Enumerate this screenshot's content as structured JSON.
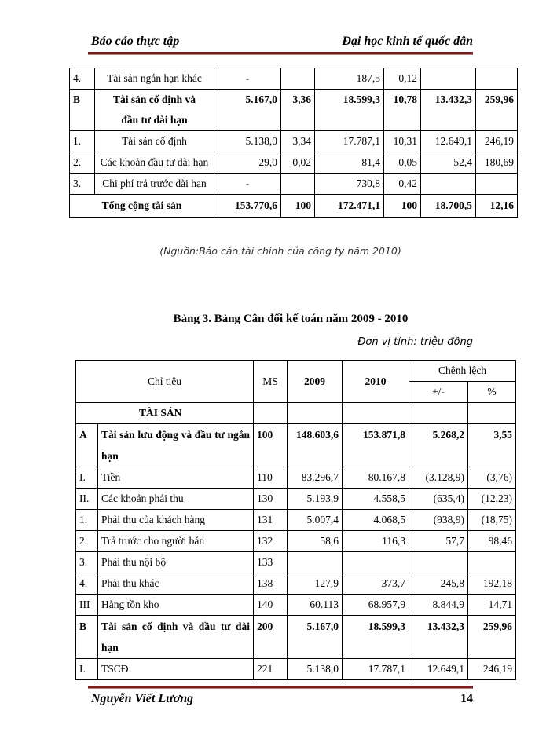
{
  "header": {
    "left": "Báo cáo thực tập",
    "right": "Đại học kinh tế quốc dân"
  },
  "table1": {
    "rows": [
      {
        "no": "4.",
        "name": "Tài sản ngắn hạn khác",
        "v2009": "-",
        "p2009": "",
        "v2010": "187,5",
        "p2010": "0,12",
        "diff": "",
        "pct": "",
        "bold": false
      },
      {
        "no": "B",
        "name": "Tài sản cố định và đầu tư dài hạn",
        "v2009": "5.167,0",
        "p2009": "3,36",
        "v2010": "18.599,3",
        "p2010": "10,78",
        "diff": "13.432,3",
        "pct": "259,96",
        "bold": true
      },
      {
        "no": "1.",
        "name": "Tài sản cố định",
        "v2009": "5.138,0",
        "p2009": "3,34",
        "v2010": "17.787,1",
        "p2010": "10,31",
        "diff": "12.649,1",
        "pct": "246,19",
        "bold": false
      },
      {
        "no": "2.",
        "name": "Các khoản đầu tư dài hạn",
        "v2009": "29,0",
        "p2009": "0,02",
        "v2010": "81,4",
        "p2010": "0,05",
        "diff": "52,4",
        "pct": "180,69",
        "bold": false
      },
      {
        "no": "3.",
        "name": "Chi phí trả trước dài hạn",
        "v2009": "-",
        "p2009": "",
        "v2010": "730,8",
        "p2010": "0,42",
        "diff": "",
        "pct": "",
        "bold": false
      }
    ],
    "total": {
      "name": "Tổng cộng tài sản",
      "v2009": "153.770,6",
      "p2009": "100",
      "v2010": "172.471,1",
      "p2010": "100",
      "diff": "18.700,5",
      "pct": "12,16"
    }
  },
  "source": "(Nguồn:Báo cáo tài chính của công ty năm 2010)",
  "table2": {
    "title": "Bảng 3. Bảng Cân đối kế toán năm 2009 - 2010",
    "unit": "Đơn vị tính: triệu đồng",
    "headers": {
      "indicator": "Chỉ tiêu",
      "ms": "MS",
      "y2009": "2009",
      "y2010": "2010",
      "diff_group": "Chênh lệch",
      "diff_abs": "+/-",
      "diff_pct": "%"
    },
    "section": "TÀI SẢN",
    "rows": [
      {
        "no": "A",
        "name": "Tài sản lưu động và đầu tư ngắn hạn",
        "ms": "100",
        "v2009": "148.603,6",
        "v2010": "153.871,8",
        "diff": "5.268,2",
        "pct": "3,55",
        "bold": true
      },
      {
        "no": "I.",
        "name": "Tiền",
        "ms": "110",
        "v2009": "83.296,7",
        "v2010": "80.167,8",
        "diff": "(3.128,9)",
        "pct": "(3,76)",
        "bold": false
      },
      {
        "no": "II.",
        "name": "Các khoản phải thu",
        "ms": "130",
        "v2009": "5.193,9",
        "v2010": "4.558,5",
        "diff": "(635,4)",
        "pct": "(12,23)",
        "bold": false
      },
      {
        "no": "1.",
        "name": "Phải thu của khách hàng",
        "ms": "131",
        "v2009": "5.007,4",
        "v2010": "4.068,5",
        "diff": "(938,9)",
        "pct": "(18,75)",
        "bold": false
      },
      {
        "no": "2.",
        "name": "Trả trước cho người bán",
        "ms": "132",
        "v2009": "58,6",
        "v2010": "116,3",
        "diff": "57,7",
        "pct": "98,46",
        "bold": false
      },
      {
        "no": "3.",
        "name": "Phải thu nội bộ",
        "ms": "133",
        "v2009": "",
        "v2010": "",
        "diff": "",
        "pct": "",
        "bold": false
      },
      {
        "no": "4.",
        "name": "Phải thu khác",
        "ms": "138",
        "v2009": "127,9",
        "v2010": "373,7",
        "diff": "245,8",
        "pct": "192,18",
        "bold": false
      },
      {
        "no": "III",
        "name": "Hàng tồn kho",
        "ms": "140",
        "v2009": "60.113",
        "v2010": "68.957,9",
        "diff": "8.844,9",
        "pct": "14,71",
        "bold": false
      },
      {
        "no": "B",
        "name": "Tài sản cố định và đầu tư dài hạn",
        "ms": "200",
        "v2009": "5.167,0",
        "v2010": "18.599,3",
        "diff": "13.432,3",
        "pct": "259,96",
        "bold": true
      },
      {
        "no": "I.",
        "name": "TSCĐ",
        "ms": "221",
        "v2009": "5.138,0",
        "v2010": "17.787,1",
        "diff": "12.649,1",
        "pct": "246,19",
        "bold": false
      }
    ]
  },
  "footer": {
    "author": "Nguyễn Viết Lương",
    "page": "14"
  }
}
